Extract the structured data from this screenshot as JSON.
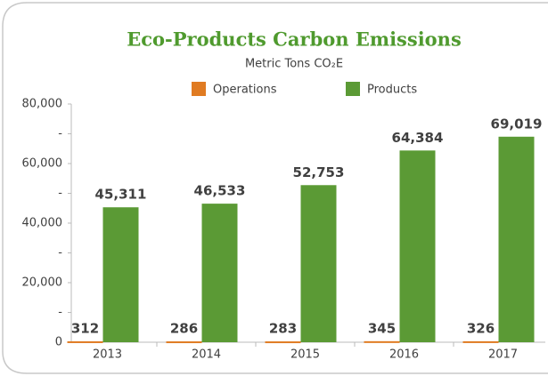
{
  "chart_data": {
    "type": "bar",
    "title": "Eco-Products Carbon Emissions",
    "subtitle": "Metric Tons CO₂E",
    "categories": [
      "2013",
      "2014",
      "2015",
      "2016",
      "2017"
    ],
    "series": [
      {
        "name": "Operations",
        "color": "#e07b22",
        "values": [
          312,
          286,
          283,
          345,
          326
        ],
        "value_labels": [
          "312",
          "286",
          "283",
          "345",
          "326"
        ]
      },
      {
        "name": "Products",
        "color": "#5b9a35",
        "values": [
          45311,
          46533,
          52753,
          64384,
          69019
        ],
        "value_labels": [
          "45,311",
          "46,533",
          "52,753",
          "64,384",
          "69,019"
        ]
      }
    ],
    "ylim": [
      0,
      80000
    ],
    "yticks": [
      0,
      {
        "value": 10000,
        "label": "-"
      },
      {
        "value": 20000,
        "label": "20,000"
      },
      {
        "value": 30000,
        "label": "-"
      },
      {
        "value": 40000,
        "label": "40,000"
      },
      {
        "value": 50000,
        "label": "-"
      },
      {
        "value": 60000,
        "label": "60,000"
      },
      {
        "value": 70000,
        "label": "-"
      },
      {
        "value": 80000,
        "label": "80,000"
      }
    ],
    "grid": false,
    "legend": "top"
  }
}
